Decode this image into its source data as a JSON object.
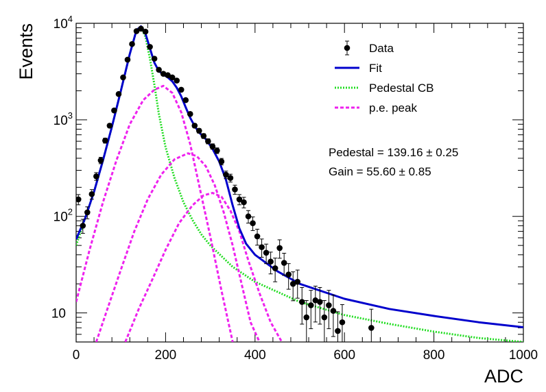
{
  "chart_data": {
    "type": "scatter",
    "xlabel": "ADC",
    "ylabel": "Events",
    "xlim": [
      0,
      1000
    ],
    "ylim": [
      5,
      10000
    ],
    "yscale": "log",
    "grid": false,
    "legend_position": "top-right",
    "x_ticks": [
      "0",
      "200",
      "400",
      "600",
      "800",
      "1000"
    ],
    "y_ticks": [
      {
        "base": "10",
        "exp": ""
      },
      {
        "base": "10",
        "exp": "2"
      },
      {
        "base": "10",
        "exp": "3"
      },
      {
        "base": "10",
        "exp": "4"
      }
    ],
    "legend": [
      {
        "label": "Data",
        "style": "marker",
        "color": "#000000"
      },
      {
        "label": "Fit",
        "style": "solid",
        "color": "#0000cc"
      },
      {
        "label": "Pedestal CB",
        "style": "dotted",
        "color": "#22dd22"
      },
      {
        "label": "p.e. peak",
        "style": "dashed",
        "color": "#ee22ee"
      }
    ],
    "annotations": [
      "Pedestal = 139.16 ± 0.25",
      "Gain = 55.60 ± 0.85"
    ],
    "series": [
      {
        "name": "Data",
        "kind": "points",
        "color": "#000000",
        "points": [
          [
            5,
            150
          ],
          [
            15,
            80
          ],
          [
            25,
            110
          ],
          [
            35,
            170
          ],
          [
            45,
            260
          ],
          [
            55,
            380
          ],
          [
            65,
            610
          ],
          [
            75,
            870
          ],
          [
            85,
            1250
          ],
          [
            95,
            1850
          ],
          [
            105,
            2750
          ],
          [
            115,
            4200
          ],
          [
            125,
            6100
          ],
          [
            135,
            8300
          ],
          [
            145,
            8800
          ],
          [
            155,
            8200
          ],
          [
            165,
            5700
          ],
          [
            175,
            4300
          ],
          [
            185,
            3300
          ],
          [
            195,
            3000
          ],
          [
            205,
            2900
          ],
          [
            215,
            2750
          ],
          [
            225,
            2550
          ],
          [
            235,
            2050
          ],
          [
            245,
            1600
          ],
          [
            255,
            1150
          ],
          [
            265,
            870
          ],
          [
            275,
            770
          ],
          [
            285,
            680
          ],
          [
            295,
            600
          ],
          [
            305,
            530
          ],
          [
            315,
            480
          ],
          [
            325,
            370
          ],
          [
            335,
            270
          ],
          [
            345,
            250
          ],
          [
            355,
            190
          ],
          [
            365,
            150
          ],
          [
            375,
            140
          ],
          [
            385,
            100
          ],
          [
            395,
            85
          ],
          [
            405,
            62
          ],
          [
            415,
            48
          ],
          [
            425,
            42
          ],
          [
            435,
            34
          ],
          [
            445,
            29
          ],
          [
            455,
            47
          ],
          [
            465,
            33
          ],
          [
            475,
            25
          ],
          [
            485,
            20
          ],
          [
            495,
            21
          ],
          [
            505,
            13
          ],
          [
            515,
            9
          ],
          [
            525,
            12
          ],
          [
            535,
            13.5
          ],
          [
            545,
            13
          ],
          [
            555,
            9
          ],
          [
            565,
            12
          ],
          [
            575,
            10.5
          ],
          [
            585,
            6.5
          ],
          [
            595,
            8
          ],
          [
            660,
            7
          ]
        ]
      },
      {
        "name": "Fit",
        "kind": "line",
        "color": "#0000cc",
        "points": [
          [
            0,
            58
          ],
          [
            20,
            95
          ],
          [
            40,
            180
          ],
          [
            60,
            380
          ],
          [
            80,
            850
          ],
          [
            100,
            2000
          ],
          [
            120,
            4800
          ],
          [
            135,
            8500
          ],
          [
            145,
            9300
          ],
          [
            155,
            7800
          ],
          [
            165,
            5500
          ],
          [
            175,
            3900
          ],
          [
            185,
            3200
          ],
          [
            195,
            2950
          ],
          [
            205,
            2750
          ],
          [
            215,
            2500
          ],
          [
            225,
            2150
          ],
          [
            235,
            1750
          ],
          [
            245,
            1350
          ],
          [
            255,
            1050
          ],
          [
            265,
            860
          ],
          [
            275,
            740
          ],
          [
            290,
            630
          ],
          [
            305,
            500
          ],
          [
            320,
            370
          ],
          [
            335,
            240
          ],
          [
            350,
            130
          ],
          [
            365,
            75
          ],
          [
            380,
            52
          ],
          [
            400,
            40
          ],
          [
            450,
            27
          ],
          [
            500,
            20
          ],
          [
            600,
            14
          ],
          [
            700,
            11
          ],
          [
            800,
            9.3
          ],
          [
            900,
            8
          ],
          [
            1000,
            7.1
          ]
        ]
      },
      {
        "name": "Pedestal CB",
        "kind": "line",
        "color": "#22dd22",
        "points": [
          [
            0,
            50
          ],
          [
            20,
            95
          ],
          [
            40,
            180
          ],
          [
            60,
            380
          ],
          [
            80,
            850
          ],
          [
            100,
            2000
          ],
          [
            120,
            4800
          ],
          [
            135,
            8500
          ],
          [
            145,
            9200
          ],
          [
            155,
            7200
          ],
          [
            165,
            4300
          ],
          [
            175,
            2300
          ],
          [
            185,
            1150
          ],
          [
            200,
            520
          ],
          [
            220,
            250
          ],
          [
            240,
            140
          ],
          [
            260,
            92
          ],
          [
            280,
            65
          ],
          [
            300,
            50
          ],
          [
            350,
            30
          ],
          [
            400,
            21
          ],
          [
            500,
            13
          ],
          [
            600,
            9.5
          ],
          [
            700,
            7.7
          ],
          [
            800,
            6.4
          ],
          [
            900,
            5.5
          ],
          [
            1000,
            5
          ]
        ]
      },
      {
        "name": "p.e. peak 1",
        "kind": "line",
        "color": "#ee22ee",
        "points": [
          [
            0,
            13
          ],
          [
            30,
            45
          ],
          [
            60,
            140
          ],
          [
            90,
            380
          ],
          [
            120,
            900
          ],
          [
            150,
            1600
          ],
          [
            175,
            2050
          ],
          [
            195,
            2250
          ],
          [
            215,
            1900
          ],
          [
            235,
            1200
          ],
          [
            255,
            560
          ],
          [
            275,
            210
          ],
          [
            300,
            62
          ],
          [
            325,
            17
          ],
          [
            350,
            5
          ]
        ]
      },
      {
        "name": "p.e. peak 2",
        "kind": "line",
        "color": "#ee22ee",
        "points": [
          [
            45,
            5
          ],
          [
            70,
            11
          ],
          [
            100,
            28
          ],
          [
            130,
            70
          ],
          [
            160,
            150
          ],
          [
            190,
            270
          ],
          [
            220,
            390
          ],
          [
            250,
            450
          ],
          [
            270,
            420
          ],
          [
            290,
            330
          ],
          [
            310,
            210
          ],
          [
            330,
            110
          ],
          [
            350,
            50
          ],
          [
            370,
            20
          ],
          [
            390,
            8
          ],
          [
            410,
            5
          ]
        ]
      },
      {
        "name": "p.e. peak 3",
        "kind": "line",
        "color": "#ee22ee",
        "points": [
          [
            110,
            5
          ],
          [
            140,
            11
          ],
          [
            170,
            22
          ],
          [
            200,
            45
          ],
          [
            230,
            85
          ],
          [
            260,
            130
          ],
          [
            285,
            165
          ],
          [
            305,
            175
          ],
          [
            325,
            160
          ],
          [
            345,
            115
          ],
          [
            365,
            70
          ],
          [
            385,
            35
          ],
          [
            410,
            16
          ],
          [
            435,
            8
          ],
          [
            460,
            5
          ]
        ]
      }
    ]
  }
}
